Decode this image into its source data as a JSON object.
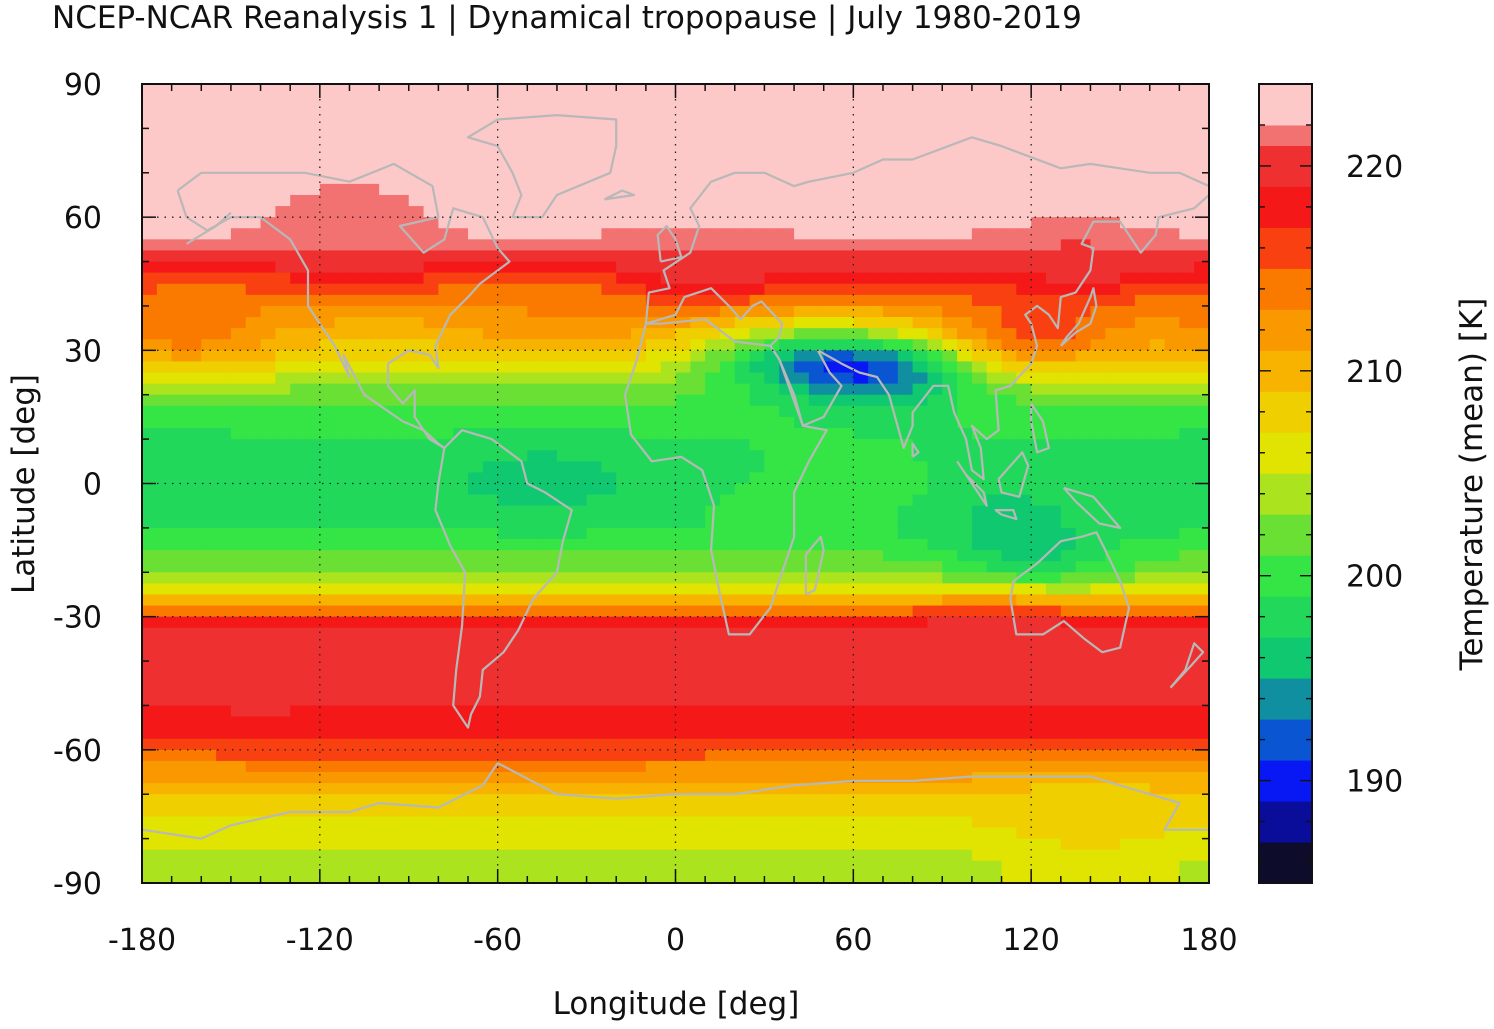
{
  "title": "NCEP-NCAR Reanalysis 1 | Dynamical tropopause | July 1980-2019",
  "chart_data": {
    "type": "heatmap",
    "title": "NCEP-NCAR Reanalysis 1 | Dynamical tropopause | July 1980-2019",
    "xlabel": "Longitude [deg]",
    "ylabel": "Latitude [deg]",
    "xlim": [
      -180,
      180
    ],
    "ylim": [
      -90,
      90
    ],
    "xticks": [
      "-180",
      "-120",
      "-60",
      "0",
      "60",
      "120",
      "180"
    ],
    "yticks": [
      "90",
      "60",
      "30",
      "0",
      "-30",
      "-60",
      "-90"
    ],
    "grid": true,
    "colorbar": {
      "label": "Temperature (mean) [K]",
      "range": [
        185,
        224
      ],
      "ticks": [
        "220",
        "210",
        "200",
        "190"
      ],
      "levels": [
        {
          "from": 185,
          "to": 187,
          "color": "#0d0d2b"
        },
        {
          "from": 187,
          "to": 189,
          "color": "#0a0c9a"
        },
        {
          "from": 189,
          "to": 191,
          "color": "#0818f5"
        },
        {
          "from": 191,
          "to": 193,
          "color": "#0a56d2"
        },
        {
          "from": 193,
          "to": 195,
          "color": "#0f8fa0"
        },
        {
          "from": 195,
          "to": 197,
          "color": "#10c870"
        },
        {
          "from": 197,
          "to": 199,
          "color": "#22d85a"
        },
        {
          "from": 199,
          "to": 201,
          "color": "#35e545"
        },
        {
          "from": 201,
          "to": 203,
          "color": "#6ae035"
        },
        {
          "from": 203,
          "to": 205,
          "color": "#abe41e"
        },
        {
          "from": 205,
          "to": 207,
          "color": "#e1e300"
        },
        {
          "from": 207,
          "to": 209,
          "color": "#f0cf00"
        },
        {
          "from": 209,
          "to": 211,
          "color": "#f7b300"
        },
        {
          "from": 211,
          "to": 213,
          "color": "#fa9800"
        },
        {
          "from": 213,
          "to": 215,
          "color": "#fa7a00"
        },
        {
          "from": 215,
          "to": 217,
          "color": "#f84010"
        },
        {
          "from": 217,
          "to": 219,
          "color": "#f41818"
        },
        {
          "from": 219,
          "to": 221,
          "color": "#ee3030"
        },
        {
          "from": 221,
          "to": 222,
          "color": "#f27272"
        },
        {
          "from": 222,
          "to": 224,
          "color": "#fdc8c8"
        }
      ]
    },
    "zonal_mean_profile": {
      "lat": [
        90,
        80,
        70,
        60,
        55,
        50,
        45,
        40,
        35,
        30,
        25,
        20,
        15,
        10,
        5,
        0,
        -5,
        -10,
        -15,
        -20,
        -25,
        -28,
        -32,
        -40,
        -50,
        -60,
        -65,
        -70,
        -75,
        -80,
        -85,
        -90
      ],
      "temperature": [
        223,
        223,
        223,
        223,
        222,
        220,
        216,
        213,
        210,
        208,
        205,
        202,
        200,
        199,
        198,
        198,
        199,
        199,
        201,
        203,
        207,
        212,
        219,
        220,
        219,
        216,
        212,
        209,
        207,
        206,
        204,
        204
      ]
    },
    "regional_anomalies": [
      {
        "lon": 40,
        "lat": 26,
        "temperature": 197
      },
      {
        "lon": 72,
        "lat": 24,
        "temperature": 194
      },
      {
        "lon": -45,
        "lat": 0,
        "temperature": 196
      },
      {
        "lon": 110,
        "lat": -5,
        "temperature": 197
      },
      {
        "lon": -170,
        "lat": 0,
        "temperature": 197
      },
      {
        "lon": 120,
        "lat": -15,
        "temperature": 197
      },
      {
        "lon": 57,
        "lat": 0,
        "temperature": 201
      },
      {
        "lon": -165,
        "lat": 35,
        "temperature": 214
      },
      {
        "lon": -40,
        "lat": 38,
        "temperature": 213
      },
      {
        "lon": -140,
        "lat": -40,
        "temperature": 221
      },
      {
        "lon": 110,
        "lat": -35,
        "temperature": 221
      },
      {
        "lon": -110,
        "lat": 60,
        "temperature": 221
      },
      {
        "lon": 10,
        "lat": 50,
        "temperature": 221
      },
      {
        "lon": 135,
        "lat": 52,
        "temperature": 221
      },
      {
        "lon": 120,
        "lat": 35,
        "temperature": 216
      },
      {
        "lon": 140,
        "lat": -75,
        "temperature": 208
      },
      {
        "lon": 140,
        "lat": -88,
        "temperature": 206
      }
    ],
    "coastline_color": "#b8b8b8"
  }
}
